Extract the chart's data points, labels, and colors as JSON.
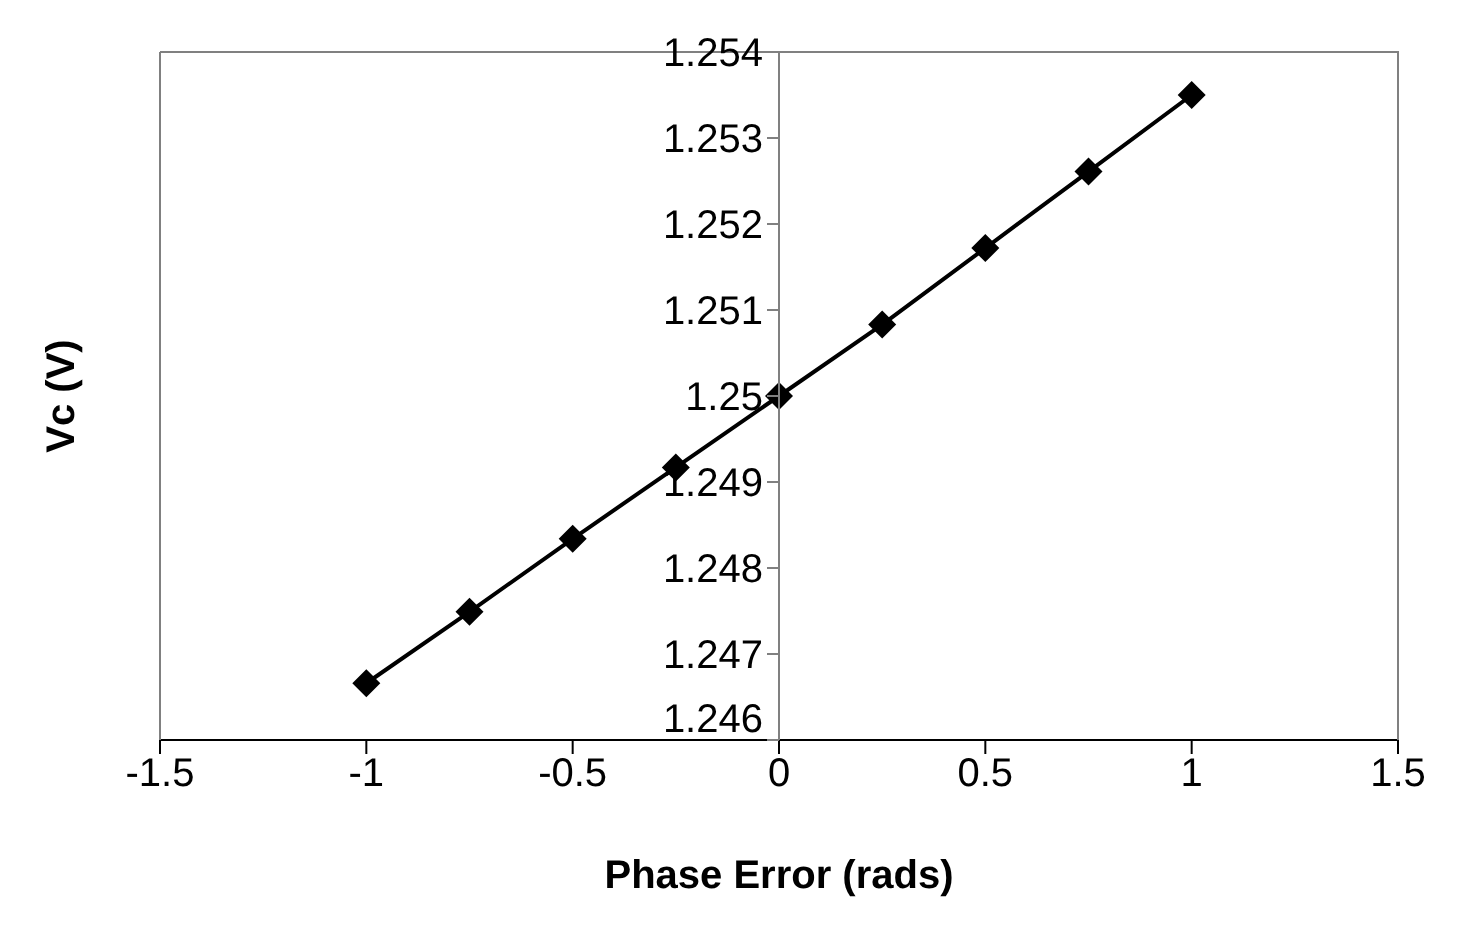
{
  "chart_data": {
    "type": "line",
    "xlabel": "Phase Error (rads)",
    "ylabel": "Vc (V)",
    "x": [
      -1,
      -0.75,
      -0.5,
      -0.25,
      0,
      0.25,
      0.5,
      0.75,
      1
    ],
    "series": [
      {
        "color": "#000000",
        "values": [
          1.24666,
          1.24749,
          1.24834,
          1.24917,
          1.25,
          1.25083,
          1.25172,
          1.25261,
          1.2535
        ]
      }
    ],
    "xlim": [
      -1.5,
      1.5
    ],
    "xticks": [
      -1.5,
      -1,
      -0.5,
      0,
      0.5,
      1,
      1.5
    ],
    "ylim": [
      1.246,
      1.254
    ],
    "yticks": [
      1.246,
      1.247,
      1.248,
      1.249,
      1.25,
      1.251,
      1.252,
      1.253,
      1.254
    ],
    "grid": false,
    "legend": false,
    "marker": "diamond",
    "line_style": "solid"
  }
}
